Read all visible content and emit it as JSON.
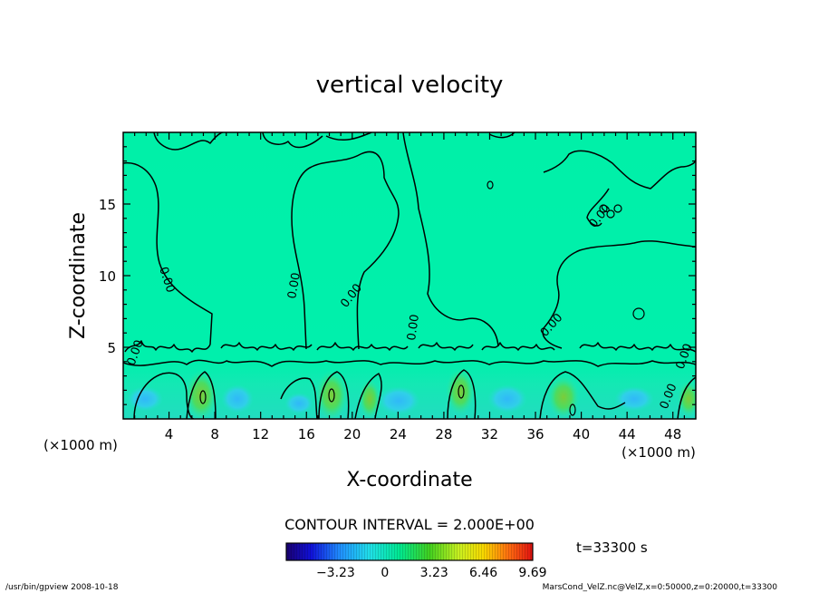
{
  "chart_data": {
    "type": "heatmap",
    "title": "vertical velocity",
    "xlabel": "X-coordinate",
    "ylabel": "Z-coordinate",
    "x_unit_left": "(×1000 m)",
    "x_unit_right": "(×1000 m)",
    "xlim": [
      0,
      50
    ],
    "ylim": [
      0,
      20
    ],
    "x_ticks": [
      4,
      8,
      12,
      16,
      20,
      24,
      28,
      32,
      36,
      40,
      44,
      48
    ],
    "y_ticks": [
      5,
      10,
      15
    ],
    "contour_interval_text": "CONTOUR INTERVAL = 2.000E+00",
    "time_text": "t=33300 s",
    "colorbar": {
      "min": -6.46,
      "max": 9.69,
      "tick_values": [
        -3.23,
        0,
        3.23,
        6.46,
        9.69
      ],
      "tick_labels": [
        "−3.23",
        "0",
        "3.23",
        "6.46",
        "9.69"
      ]
    },
    "contour_labels": [
      "0.00",
      "0.00",
      "0.00",
      "0.00",
      "0.00",
      "0.00",
      "0.00",
      "0.00",
      "0.00"
    ],
    "footer_left": "/usr/bin/gpview  2008-10-18",
    "footer_right": "MarsCond_VelZ.nc@VelZ,x=0:50000,z=0:20000,t=33300",
    "colors": {
      "field_upper": "#00f0a8",
      "field_lower": "#1fe6b8",
      "positive_core": "#5cd84a",
      "negative_core": "#36c8f0",
      "contour": "#000000"
    }
  }
}
